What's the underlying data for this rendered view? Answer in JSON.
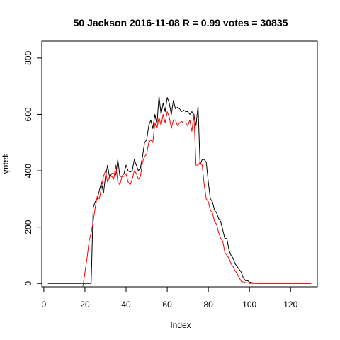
{
  "chart_data": {
    "type": "line",
    "title": "50 Jackson 2016-11-08 R = 0.99 votes = 30835",
    "xlabel": "Index",
    "ylabel": "votes",
    "ylabel_overprint": "pred",
    "xlim": [
      -1,
      133
    ],
    "ylim": [
      -12,
      860
    ],
    "x_ticks": [
      0,
      20,
      40,
      60,
      80,
      100,
      120
    ],
    "y_ticks": [
      0,
      200,
      400,
      600,
      800
    ],
    "grid": false,
    "legend": "none",
    "x": [
      2,
      3,
      4,
      5,
      6,
      7,
      8,
      9,
      10,
      11,
      12,
      13,
      14,
      15,
      16,
      17,
      18,
      19,
      20,
      21,
      22,
      23,
      24,
      25,
      26,
      27,
      28,
      29,
      30,
      31,
      32,
      33,
      34,
      35,
      36,
      37,
      38,
      39,
      40,
      41,
      42,
      43,
      44,
      45,
      46,
      47,
      48,
      49,
      50,
      51,
      52,
      53,
      54,
      55,
      56,
      57,
      58,
      59,
      60,
      61,
      62,
      63,
      64,
      65,
      66,
      67,
      68,
      69,
      70,
      71,
      72,
      73,
      74,
      75,
      76,
      77,
      78,
      79,
      80,
      81,
      82,
      83,
      84,
      85,
      86,
      87,
      88,
      89,
      90,
      91,
      92,
      93,
      94,
      95,
      96,
      97,
      98,
      99,
      100,
      101,
      102,
      103,
      104,
      105,
      106,
      107,
      108,
      109,
      110,
      111,
      112,
      113,
      114,
      115,
      116,
      117,
      118,
      119,
      120,
      121,
      122,
      123,
      124,
      125,
      126,
      127,
      128,
      129,
      130
    ],
    "series": [
      {
        "color": "#000000",
        "values": [
          0,
          0,
          0,
          0,
          0,
          0,
          0,
          0,
          0,
          0,
          0,
          0,
          0,
          0,
          0,
          0,
          0,
          0,
          0,
          0,
          0,
          0,
          270,
          290,
          300,
          330,
          360,
          320,
          380,
          420,
          375,
          390,
          390,
          385,
          440,
          380,
          380,
          390,
          420,
          400,
          395,
          400,
          440,
          420,
          400,
          410,
          450,
          500,
          510,
          560,
          580,
          550,
          600,
          565,
          665,
          600,
          640,
          610,
          660,
          640,
          600,
          650,
          620,
          625,
          620,
          610,
          615,
          610,
          610,
          600,
          610,
          600,
          560,
          630,
          420,
          440,
          440,
          430,
          360,
          300,
          290,
          260,
          250,
          230,
          220,
          190,
          160,
          160,
          120,
          100,
          90,
          70,
          60,
          50,
          40,
          20,
          10,
          10,
          5,
          3,
          2,
          1,
          0,
          0,
          0,
          0,
          0,
          0,
          0,
          0,
          0,
          0,
          0,
          0,
          0,
          0,
          0,
          0,
          0,
          0,
          0,
          0,
          0,
          0,
          0,
          0,
          0,
          0,
          0
        ]
      },
      {
        "color": "#ff0000",
        "values": [
          null,
          null,
          null,
          null,
          null,
          null,
          null,
          null,
          null,
          null,
          null,
          null,
          null,
          null,
          null,
          null,
          null,
          -10,
          40,
          90,
          150,
          180,
          220,
          270,
          310,
          300,
          340,
          380,
          400,
          360,
          380,
          380,
          370,
          420,
          360,
          350,
          380,
          380,
          390,
          360,
          350,
          370,
          400,
          390,
          370,
          380,
          430,
          450,
          460,
          500,
          510,
          500,
          570,
          550,
          590,
          560,
          600,
          570,
          610,
          590,
          550,
          580,
          580,
          560,
          570,
          575,
          570,
          570,
          560,
          580,
          540,
          600,
          420,
          420,
          430,
          420,
          350,
          300,
          290,
          260,
          250,
          220,
          210,
          180,
          160,
          150,
          110,
          100,
          90,
          70,
          60,
          45,
          35,
          20,
          8,
          5,
          3,
          2,
          0,
          0,
          0,
          0,
          0,
          0,
          0,
          0,
          0,
          0,
          0,
          0,
          0,
          0,
          0,
          0,
          0,
          0,
          0,
          0,
          0,
          0,
          0,
          0,
          0,
          0,
          0,
          0,
          0,
          0,
          0
        ]
      }
    ]
  }
}
